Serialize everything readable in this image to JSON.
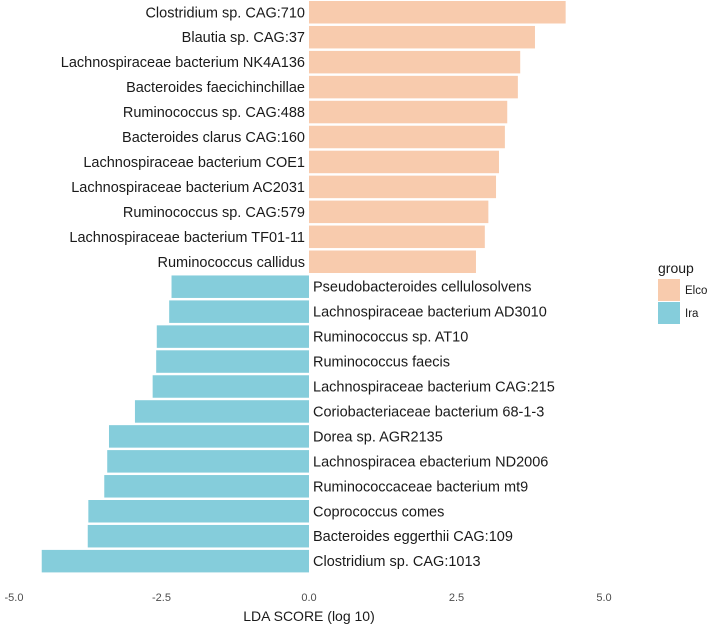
{
  "chart_data": {
    "type": "bar",
    "orientation": "horizontal",
    "xlabel": "LDA SCORE (log 10)",
    "xlim": [
      -5.0,
      5.0
    ],
    "xticks": [
      "-5.0",
      "-2.5",
      "0.0",
      "2.5",
      "5.0"
    ],
    "xtick_values": [
      -5.0,
      -2.5,
      0.0,
      2.5,
      5.0
    ],
    "grid": false,
    "legend": {
      "title": "group",
      "placement": "right",
      "entries": [
        {
          "label": "Elco",
          "color": "#F8CBAD"
        },
        {
          "label": "Ira",
          "color": "#85CDDB"
        }
      ]
    },
    "categories": [
      "Clostridium sp. CAG:710",
      "Blautia sp. CAG:37",
      "Lachnospiraceae bacterium NK4A136",
      "Bacteroides faecichinchillae",
      "Ruminococcus sp. CAG:488",
      "Bacteroides clarus CAG:160",
      "Lachnospiraceae bacterium COE1",
      "Lachnospiraceae bacterium AC2031",
      "Ruminococcus sp. CAG:579",
      "Lachnospiraceae bacterium TF01-11",
      "Ruminococcus callidus",
      "Pseudobacteroides cellulosolvens",
      "Lachnospiraceae bacterium AD3010",
      "Ruminococcus sp. AT10",
      "Ruminococcus faecis",
      "Lachnospiraceae bacterium CAG:215",
      "Coriobacteriaceae bacterium 68-1-3",
      "Dorea sp. AGR2135",
      "Lachnospiracea ebacterium ND2006",
      "Ruminococcaceae bacterium mt9",
      "Coprococcus comes",
      "Bacteroides eggerthii CAG:109",
      "Clostridium sp. CAG:1013"
    ],
    "values": [
      4.35,
      3.83,
      3.58,
      3.54,
      3.36,
      3.32,
      3.22,
      3.17,
      3.04,
      2.98,
      2.83,
      -2.33,
      -2.37,
      -2.58,
      -2.59,
      -2.65,
      -2.95,
      -3.39,
      -3.42,
      -3.47,
      -3.74,
      -3.75,
      -4.53
    ],
    "groups": [
      "Elco",
      "Elco",
      "Elco",
      "Elco",
      "Elco",
      "Elco",
      "Elco",
      "Elco",
      "Elco",
      "Elco",
      "Elco",
      "Ira",
      "Ira",
      "Ira",
      "Ira",
      "Ira",
      "Ira",
      "Ira",
      "Ira",
      "Ira",
      "Ira",
      "Ira",
      "Ira"
    ],
    "colors": {
      "Elco": "#F8CBAD",
      "Ira": "#85CDDB"
    }
  }
}
